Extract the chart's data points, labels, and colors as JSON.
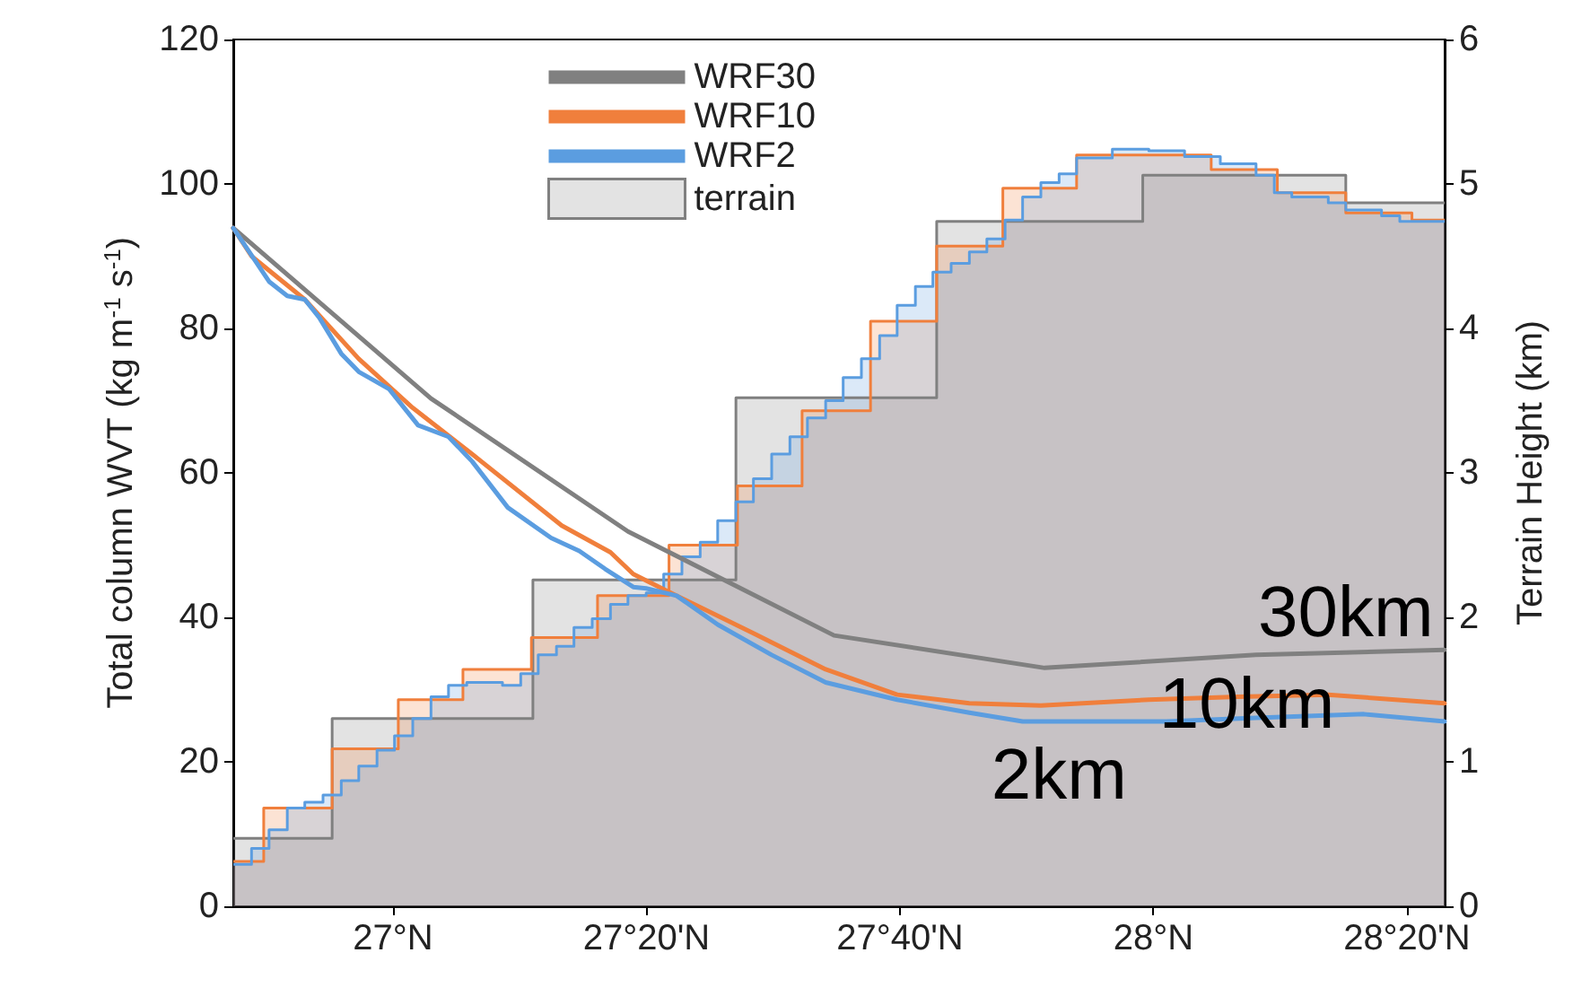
{
  "chart_data": {
    "type": "line",
    "xlabel": null,
    "ylabel": "Total column WVT (kg m$^{-1}$ s$^{-1}$)",
    "y2label": "Terrain Height (km)",
    "xlim": [
      26.79,
      28.383
    ],
    "xticks": [
      {
        "value": 27,
        "label": "27°N"
      },
      {
        "value": 27.3333,
        "label": "27°20'N"
      },
      {
        "value": 27.6667,
        "label": "27°40'N"
      },
      {
        "value": 28,
        "label": "28°N"
      },
      {
        "value": 28.3333,
        "label": "28°20'N"
      }
    ],
    "ylim": [
      0,
      120
    ],
    "yticks": [
      0,
      20,
      40,
      60,
      80,
      100,
      120
    ],
    "y2lim": [
      0,
      6
    ],
    "y2ticks": [
      0,
      1,
      2,
      3,
      4,
      5,
      6
    ],
    "grid": false,
    "legend": "top",
    "marker": "none",
    "line_style": "solid",
    "series": [
      {
        "name": "WRF30",
        "color": "#808080",
        "x": [
          26.79,
          27.05,
          27.309,
          27.58,
          27.857,
          28.135,
          28.383
        ],
        "values": [
          93.9,
          70.3,
          51.9,
          37.5,
          33.0,
          34.8,
          35.5
        ]
      },
      {
        "name": "WRF10",
        "color": "#f07f3c",
        "x": [
          26.79,
          26.814,
          26.884,
          26.955,
          27.026,
          27.104,
          27.222,
          27.286,
          27.316,
          27.363,
          27.474,
          27.569,
          27.663,
          27.758,
          27.852,
          27.994,
          28.111,
          28.23,
          28.383
        ],
        "values": [
          93.9,
          90,
          84,
          75.8,
          69,
          62.6,
          52.7,
          49,
          46,
          43.5,
          37.8,
          32.8,
          29.3,
          28.1,
          27.8,
          28.6,
          29,
          29.3,
          28.1
        ]
      },
      {
        "name": "WRF2",
        "color": "#5b9de0",
        "x": [
          26.79,
          26.837,
          26.861,
          26.884,
          26.903,
          26.932,
          26.955,
          26.995,
          27.033,
          27.073,
          27.104,
          27.151,
          27.208,
          27.245,
          27.279,
          27.316,
          27.333,
          27.373,
          27.427,
          27.498,
          27.569,
          27.663,
          27.758,
          27.828,
          27.899,
          28.017,
          28.135,
          28.277,
          28.383
        ],
        "values": [
          93.9,
          86.5,
          84.5,
          84,
          81.5,
          76.5,
          74,
          71.6,
          66.6,
          65,
          61.6,
          55.2,
          51,
          49.2,
          46.7,
          44.2,
          44,
          43,
          39,
          34.8,
          31,
          28.6,
          26.8,
          25.6,
          25.6,
          25.6,
          26.1,
          26.6,
          25.6
        ]
      },
      {
        "name": "terrain",
        "type": "area",
        "axis": "y2",
        "color": "#808080",
        "x": [
          26.79,
          26.92,
          26.92,
          27.184,
          27.184,
          27.451,
          27.451,
          27.715,
          27.715,
          27.986,
          27.986,
          28.253,
          28.253,
          28.383
        ],
        "values": [
          0.47,
          0.47,
          1.3,
          1.3,
          2.26,
          2.26,
          3.52,
          3.52,
          4.74,
          4.74,
          5.06,
          5.06,
          4.87,
          4.87
        ]
      },
      {
        "type": "area",
        "axis": "y2",
        "color": "#f07f3c",
        "x": [
          26.79,
          26.83,
          26.83,
          26.92,
          26.92,
          27.007,
          27.007,
          27.092,
          27.092,
          27.182,
          27.182,
          27.269,
          27.269,
          27.363,
          27.363,
          27.453,
          27.453,
          27.538,
          27.538,
          27.628,
          27.628,
          27.715,
          27.715,
          27.802,
          27.802,
          27.899,
          27.899,
          28.076,
          28.076,
          28.163,
          28.163,
          28.253,
          28.253,
          28.34,
          28.34,
          28.383
        ],
        "values": [
          0.31,
          0.31,
          0.68,
          0.68,
          1.09,
          1.09,
          1.43,
          1.43,
          1.64,
          1.64,
          1.86,
          1.86,
          2.15,
          2.15,
          2.5,
          2.5,
          2.91,
          2.91,
          3.43,
          3.43,
          4.05,
          4.05,
          4.57,
          4.57,
          4.97,
          4.97,
          5.2,
          5.2,
          5.1,
          5.1,
          4.94,
          4.94,
          4.8,
          4.8,
          4.75,
          4.75
        ]
      },
      {
        "type": "area",
        "axis": "y2",
        "color": "#5b9de0",
        "x": [
          26.79,
          26.814,
          26.814,
          26.837,
          26.837,
          26.861,
          26.861,
          26.884,
          26.884,
          26.908,
          26.908,
          26.932,
          26.932,
          26.955,
          26.955,
          26.979,
          26.979,
          27.002,
          27.002,
          27.026,
          27.026,
          27.05,
          27.05,
          27.073,
          27.073,
          27.097,
          27.097,
          27.12,
          27.12,
          27.144,
          27.144,
          27.168,
          27.168,
          27.191,
          27.191,
          27.215,
          27.215,
          27.238,
          27.238,
          27.262,
          27.262,
          27.286,
          27.286,
          27.309,
          27.309,
          27.333,
          27.333,
          27.356,
          27.356,
          27.38,
          27.38,
          27.404,
          27.404,
          27.427,
          27.427,
          27.451,
          27.451,
          27.474,
          27.474,
          27.498,
          27.498,
          27.522,
          27.522,
          27.545,
          27.545,
          27.569,
          27.569,
          27.592,
          27.592,
          27.616,
          27.616,
          27.64,
          27.64,
          27.663,
          27.663,
          27.687,
          27.687,
          27.71,
          27.71,
          27.734,
          27.734,
          27.758,
          27.758,
          27.781,
          27.781,
          27.805,
          27.805,
          27.828,
          27.828,
          27.852,
          27.852,
          27.876,
          27.876,
          27.899,
          27.899,
          27.946,
          27.946,
          27.994,
          27.994,
          28.041,
          28.041,
          28.088,
          28.088,
          28.135,
          28.135,
          28.159,
          28.159,
          28.182,
          28.182,
          28.23,
          28.23,
          28.253,
          28.253,
          28.3,
          28.3,
          28.324,
          28.324,
          28.383
        ],
        "values": [
          0.29,
          0.29,
          0.4,
          0.4,
          0.53,
          0.53,
          0.68,
          0.68,
          0.72,
          0.72,
          0.77,
          0.77,
          0.87,
          0.87,
          0.97,
          0.97,
          1.08,
          1.08,
          1.18,
          1.18,
          1.3,
          1.3,
          1.45,
          1.45,
          1.53,
          1.53,
          1.55,
          1.55,
          1.55,
          1.55,
          1.53,
          1.53,
          1.61,
          1.61,
          1.74,
          1.74,
          1.8,
          1.8,
          1.93,
          1.93,
          1.99,
          1.99,
          2.09,
          2.09,
          2.15,
          2.15,
          2.17,
          2.17,
          2.3,
          2.3,
          2.42,
          2.42,
          2.52,
          2.52,
          2.67,
          2.67,
          2.8,
          2.8,
          2.96,
          2.96,
          3.13,
          3.13,
          3.25,
          3.25,
          3.38,
          3.38,
          3.5,
          3.5,
          3.66,
          3.66,
          3.79,
          3.79,
          3.95,
          3.95,
          4.16,
          4.16,
          4.29,
          4.29,
          4.39,
          4.39,
          4.45,
          4.45,
          4.53,
          4.53,
          4.62,
          4.62,
          4.75,
          4.75,
          4.91,
          4.91,
          5.01,
          5.01,
          5.07,
          5.07,
          5.18,
          5.18,
          5.24,
          5.24,
          5.23,
          5.23,
          5.19,
          5.19,
          5.14,
          5.14,
          5.06,
          5.06,
          4.94,
          4.94,
          4.91,
          4.91,
          4.87,
          4.87,
          4.82,
          4.82,
          4.78,
          4.78,
          4.74,
          4.74
        ]
      }
    ],
    "annotations": [
      {
        "text": "30km",
        "x": 28.253,
        "y": 35.2
      },
      {
        "text": "10km",
        "x": 28.123,
        "y": 29.0
      },
      {
        "text": "2km",
        "x": 27.876,
        "y": 25.6
      }
    ]
  }
}
